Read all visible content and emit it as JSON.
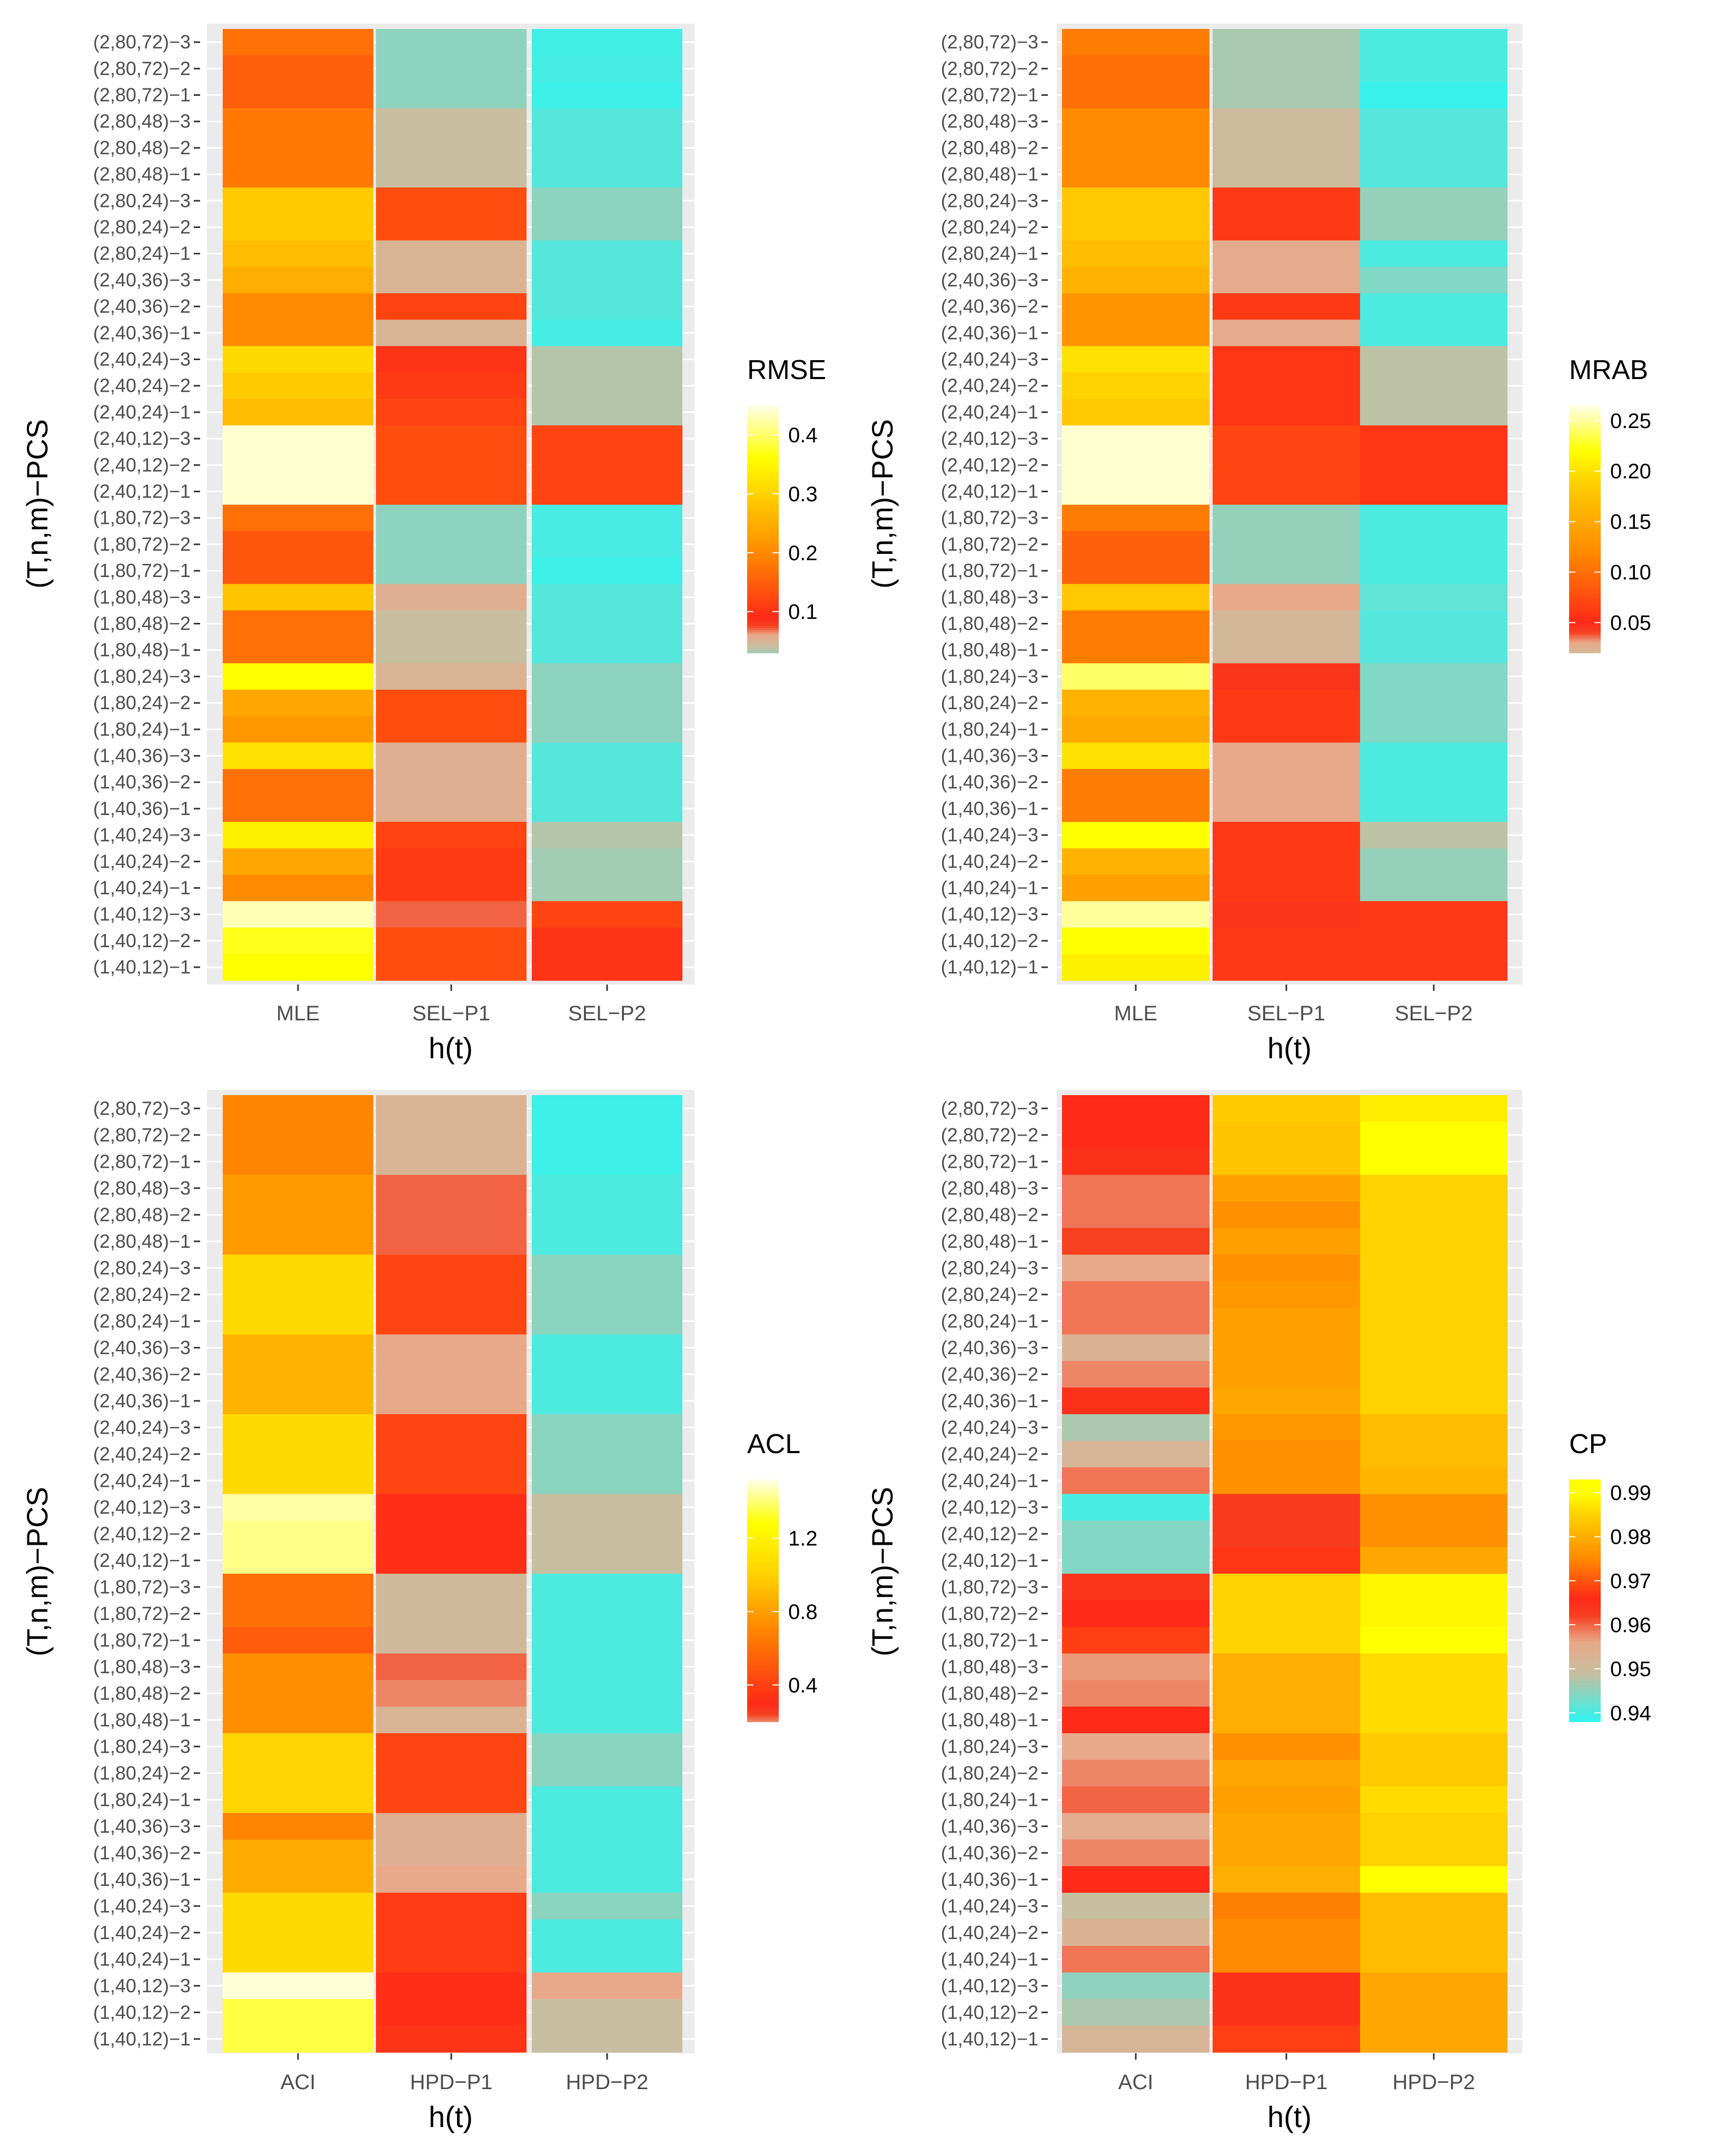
{
  "chart_data": [
    {
      "type": "heatmap",
      "id": "rmse",
      "title": "",
      "xlabel": "h(t)",
      "ylabel": "(T,n,m)−PCS",
      "legend_title": "RMSE",
      "columns": [
        "MLE",
        "SEL−P1",
        "SEL−P2"
      ],
      "rows": [
        "(2,80,72)−3",
        "(2,80,72)−2",
        "(2,80,72)−1",
        "(2,80,48)−3",
        "(2,80,48)−2",
        "(2,80,48)−1",
        "(2,80,24)−3",
        "(2,80,24)−2",
        "(2,80,24)−1",
        "(2,40,36)−3",
        "(2,40,36)−2",
        "(2,40,36)−1",
        "(2,40,24)−3",
        "(2,40,24)−2",
        "(2,40,24)−1",
        "(2,40,12)−3",
        "(2,40,12)−2",
        "(2,40,12)−1",
        "(1,80,72)−3",
        "(1,80,72)−2",
        "(1,80,72)−1",
        "(1,80,48)−3",
        "(1,80,48)−2",
        "(1,80,48)−1",
        "(1,80,24)−3",
        "(1,80,24)−2",
        "(1,80,24)−1",
        "(1,40,36)−3",
        "(1,40,36)−2",
        "(1,40,36)−1",
        "(1,40,24)−3",
        "(1,40,24)−2",
        "(1,40,24)−1",
        "(1,40,12)−3",
        "(1,40,12)−2",
        "(1,40,12)−1"
      ],
      "values": [
        [
          0.17,
          0.025,
          0.005
        ],
        [
          0.15,
          0.025,
          0.006
        ],
        [
          0.15,
          0.025,
          0.004
        ],
        [
          0.18,
          0.04,
          0.01
        ],
        [
          0.18,
          0.04,
          0.01
        ],
        [
          0.18,
          0.04,
          0.01
        ],
        [
          0.29,
          0.13,
          0.025
        ],
        [
          0.29,
          0.13,
          0.025
        ],
        [
          0.27,
          0.05,
          0.01
        ],
        [
          0.25,
          0.05,
          0.01
        ],
        [
          0.2,
          0.12,
          0.01
        ],
        [
          0.2,
          0.05,
          0.006
        ],
        [
          0.31,
          0.1,
          0.035
        ],
        [
          0.29,
          0.11,
          0.035
        ],
        [
          0.27,
          0.12,
          0.035
        ],
        [
          0.44,
          0.13,
          0.12
        ],
        [
          0.44,
          0.13,
          0.12
        ],
        [
          0.44,
          0.13,
          0.12
        ],
        [
          0.17,
          0.025,
          0.007
        ],
        [
          0.14,
          0.025,
          0.007
        ],
        [
          0.14,
          0.025,
          0.004
        ],
        [
          0.28,
          0.055,
          0.01
        ],
        [
          0.17,
          0.04,
          0.01
        ],
        [
          0.17,
          0.04,
          0.01
        ],
        [
          0.36,
          0.05,
          0.025
        ],
        [
          0.24,
          0.13,
          0.025
        ],
        [
          0.22,
          0.13,
          0.025
        ],
        [
          0.32,
          0.055,
          0.01
        ],
        [
          0.17,
          0.055,
          0.01
        ],
        [
          0.17,
          0.055,
          0.01
        ],
        [
          0.34,
          0.12,
          0.035
        ],
        [
          0.24,
          0.11,
          0.03
        ],
        [
          0.2,
          0.11,
          0.03
        ],
        [
          0.43,
          0.07,
          0.12
        ],
        [
          0.37,
          0.13,
          0.1
        ],
        [
          0.36,
          0.13,
          0.1
        ]
      ],
      "color_scale": [
        {
          "v": 0.0,
          "c": "#2ef5f0"
        },
        {
          "v": 0.04,
          "c": "#c8beA0"
        },
        {
          "v": 0.06,
          "c": "#e8a98a"
        },
        {
          "v": 0.075,
          "c": "#f64020"
        },
        {
          "v": 0.09,
          "c": "#ff2a18"
        },
        {
          "v": 0.2,
          "c": "#ff8a00"
        },
        {
          "v": 0.3,
          "c": "#ffd200"
        },
        {
          "v": 0.36,
          "c": "#ffff00"
        },
        {
          "v": 0.45,
          "c": "#ffffea"
        }
      ],
      "legend_range": [
        0.03,
        0.45
      ],
      "legend_breaks": [
        0.1,
        0.2,
        0.3,
        0.4
      ],
      "legend_labels": [
        "0.1",
        "0.2",
        "0.3",
        "0.4"
      ]
    },
    {
      "type": "heatmap",
      "id": "mrab",
      "title": "",
      "xlabel": "h(t)",
      "ylabel": "(T,n,m)−PCS",
      "legend_title": "MRAB",
      "columns": [
        "MLE",
        "SEL−P1",
        "SEL−P2"
      ],
      "rows": [
        "(2,80,72)−3",
        "(2,80,72)−2",
        "(2,80,72)−1",
        "(2,80,48)−3",
        "(2,80,48)−2",
        "(2,80,48)−1",
        "(2,80,24)−3",
        "(2,80,24)−2",
        "(2,80,24)−1",
        "(2,40,36)−3",
        "(2,40,36)−2",
        "(2,40,36)−1",
        "(2,40,24)−3",
        "(2,40,24)−2",
        "(2,40,24)−1",
        "(2,40,12)−3",
        "(2,40,12)−2",
        "(2,40,12)−1",
        "(1,80,72)−3",
        "(1,80,72)−2",
        "(1,80,72)−1",
        "(1,80,48)−3",
        "(1,80,48)−2",
        "(1,80,48)−1",
        "(1,80,24)−3",
        "(1,80,24)−2",
        "(1,80,24)−1",
        "(1,40,36)−3",
        "(1,40,36)−2",
        "(1,40,36)−1",
        "(1,40,24)−3",
        "(1,40,24)−2",
        "(1,40,24)−1",
        "(1,40,12)−3",
        "(1,40,12)−2",
        "(1,40,12)−1"
      ],
      "values": [
        [
          0.11,
          0.012,
          0.003
        ],
        [
          0.1,
          0.012,
          0.003
        ],
        [
          0.1,
          0.012,
          0.001
        ],
        [
          0.12,
          0.018,
          0.004
        ],
        [
          0.12,
          0.018,
          0.004
        ],
        [
          0.12,
          0.018,
          0.004
        ],
        [
          0.18,
          0.06,
          0.01
        ],
        [
          0.18,
          0.06,
          0.01
        ],
        [
          0.17,
          0.028,
          0.003
        ],
        [
          0.16,
          0.028,
          0.008
        ],
        [
          0.13,
          0.06,
          0.003
        ],
        [
          0.13,
          0.028,
          0.003
        ],
        [
          0.2,
          0.058,
          0.014
        ],
        [
          0.19,
          0.058,
          0.014
        ],
        [
          0.18,
          0.058,
          0.014
        ],
        [
          0.26,
          0.07,
          0.058
        ],
        [
          0.26,
          0.07,
          0.058
        ],
        [
          0.26,
          0.07,
          0.058
        ],
        [
          0.11,
          0.01,
          0.003
        ],
        [
          0.09,
          0.01,
          0.003
        ],
        [
          0.09,
          0.01,
          0.003
        ],
        [
          0.18,
          0.03,
          0.005
        ],
        [
          0.11,
          0.02,
          0.004
        ],
        [
          0.11,
          0.02,
          0.004
        ],
        [
          0.24,
          0.045,
          0.008
        ],
        [
          0.16,
          0.06,
          0.008
        ],
        [
          0.15,
          0.06,
          0.008
        ],
        [
          0.2,
          0.03,
          0.003
        ],
        [
          0.11,
          0.03,
          0.003
        ],
        [
          0.11,
          0.03,
          0.003
        ],
        [
          0.22,
          0.06,
          0.014
        ],
        [
          0.16,
          0.06,
          0.01
        ],
        [
          0.14,
          0.06,
          0.01
        ],
        [
          0.25,
          0.045,
          0.06
        ],
        [
          0.22,
          0.06,
          0.06
        ],
        [
          0.21,
          0.06,
          0.06
        ]
      ],
      "color_scale": [
        {
          "v": 0.0,
          "c": "#2ef5f0"
        },
        {
          "v": 0.015,
          "c": "#c8beA0"
        },
        {
          "v": 0.03,
          "c": "#e8a98a"
        },
        {
          "v": 0.04,
          "c": "#f64020"
        },
        {
          "v": 0.05,
          "c": "#ff2a18"
        },
        {
          "v": 0.12,
          "c": "#ff8a00"
        },
        {
          "v": 0.19,
          "c": "#ffd200"
        },
        {
          "v": 0.22,
          "c": "#ffff00"
        },
        {
          "v": 0.265,
          "c": "#ffffea"
        }
      ],
      "legend_range": [
        0.02,
        0.265
      ],
      "legend_breaks": [
        0.05,
        0.1,
        0.15,
        0.2,
        0.25
      ],
      "legend_labels": [
        "0.05",
        "0.10",
        "0.15",
        "0.20",
        "0.25"
      ]
    },
    {
      "type": "heatmap",
      "id": "acl",
      "title": "",
      "xlabel": "h(t)",
      "ylabel": "(T,n,m)−PCS",
      "legend_title": "ACL",
      "columns": [
        "ACI",
        "HPD−P1",
        "HPD−P2"
      ],
      "rows": [
        "(2,80,72)−3",
        "(2,80,72)−2",
        "(2,80,72)−1",
        "(2,80,48)−3",
        "(2,80,48)−2",
        "(2,80,48)−1",
        "(2,80,24)−3",
        "(2,80,24)−2",
        "(2,80,24)−1",
        "(2,40,36)−3",
        "(2,40,36)−2",
        "(2,40,36)−1",
        "(2,40,24)−3",
        "(2,40,24)−2",
        "(2,40,24)−1",
        "(2,40,12)−3",
        "(2,40,12)−2",
        "(2,40,12)−1",
        "(1,80,72)−3",
        "(1,80,72)−2",
        "(1,80,72)−1",
        "(1,80,48)−3",
        "(1,80,48)−2",
        "(1,80,48)−1",
        "(1,80,24)−3",
        "(1,80,24)−2",
        "(1,80,24)−1",
        "(1,40,36)−3",
        "(1,40,36)−2",
        "(1,40,36)−1",
        "(1,40,24)−3",
        "(1,40,24)−2",
        "(1,40,24)−1",
        "(1,40,12)−3",
        "(1,40,12)−2",
        "(1,40,12)−1"
      ],
      "values": [
        [
          0.7,
          0.14,
          0.01
        ],
        [
          0.7,
          0.14,
          0.01
        ],
        [
          0.7,
          0.14,
          0.01
        ],
        [
          0.78,
          0.22,
          0.02
        ],
        [
          0.78,
          0.22,
          0.02
        ],
        [
          0.78,
          0.22,
          0.02
        ],
        [
          1.05,
          0.42,
          0.06
        ],
        [
          1.05,
          0.42,
          0.06
        ],
        [
          1.05,
          0.42,
          0.06
        ],
        [
          0.88,
          0.18,
          0.02
        ],
        [
          0.88,
          0.18,
          0.02
        ],
        [
          0.88,
          0.18,
          0.02
        ],
        [
          1.05,
          0.42,
          0.06
        ],
        [
          1.05,
          0.42,
          0.06
        ],
        [
          1.05,
          0.42,
          0.06
        ],
        [
          1.45,
          0.32,
          0.1
        ],
        [
          1.42,
          0.32,
          0.1
        ],
        [
          1.42,
          0.32,
          0.1
        ],
        [
          0.6,
          0.12,
          0.02
        ],
        [
          0.6,
          0.12,
          0.02
        ],
        [
          0.52,
          0.12,
          0.02
        ],
        [
          0.74,
          0.22,
          0.02
        ],
        [
          0.74,
          0.2,
          0.02
        ],
        [
          0.74,
          0.14,
          0.02
        ],
        [
          1.02,
          0.42,
          0.06
        ],
        [
          1.02,
          0.42,
          0.06
        ],
        [
          1.02,
          0.42,
          0.02
        ],
        [
          0.7,
          0.16,
          0.02
        ],
        [
          0.85,
          0.16,
          0.02
        ],
        [
          0.85,
          0.18,
          0.02
        ],
        [
          1.05,
          0.38,
          0.06
        ],
        [
          1.05,
          0.38,
          0.02
        ],
        [
          1.05,
          0.38,
          0.02
        ],
        [
          1.5,
          0.32,
          0.18
        ],
        [
          1.35,
          0.32,
          0.1
        ],
        [
          1.35,
          0.34,
          0.1
        ]
      ],
      "color_scale": [
        {
          "v": 0.0,
          "c": "#2ef5f0"
        },
        {
          "v": 0.1,
          "c": "#c8beA0"
        },
        {
          "v": 0.18,
          "c": "#e8a98a"
        },
        {
          "v": 0.24,
          "c": "#f64020"
        },
        {
          "v": 0.3,
          "c": "#ff2a18"
        },
        {
          "v": 0.72,
          "c": "#ff8a00"
        },
        {
          "v": 1.0,
          "c": "#ffd200"
        },
        {
          "v": 1.28,
          "c": "#ffff00"
        },
        {
          "v": 1.52,
          "c": "#ffffea"
        }
      ],
      "legend_range": [
        0.2,
        1.52
      ],
      "legend_breaks": [
        0.4,
        0.8,
        1.2
      ],
      "legend_labels": [
        "0.4",
        "0.8",
        "1.2"
      ]
    },
    {
      "type": "heatmap",
      "id": "cp",
      "title": "",
      "xlabel": "h(t)",
      "ylabel": "(T,n,m)−PCS",
      "legend_title": "CP",
      "columns": [
        "ACI",
        "HPD−P1",
        "HPD−P2"
      ],
      "rows": [
        "(2,80,72)−3",
        "(2,80,72)−2",
        "(2,80,72)−1",
        "(2,80,48)−3",
        "(2,80,48)−2",
        "(2,80,48)−1",
        "(2,80,24)−3",
        "(2,80,24)−2",
        "(2,80,24)−1",
        "(2,40,36)−3",
        "(2,40,36)−2",
        "(2,40,36)−1",
        "(2,40,24)−3",
        "(2,40,24)−2",
        "(2,40,24)−1",
        "(2,40,12)−3",
        "(2,40,12)−2",
        "(2,40,12)−1",
        "(1,80,72)−3",
        "(1,80,72)−2",
        "(1,80,72)−1",
        "(1,80,48)−3",
        "(1,80,48)−2",
        "(1,80,48)−1",
        "(1,80,24)−3",
        "(1,80,24)−2",
        "(1,80,24)−1",
        "(1,40,36)−3",
        "(1,40,36)−2",
        "(1,40,36)−1",
        "(1,40,24)−3",
        "(1,40,24)−2",
        "(1,40,24)−1",
        "(1,40,12)−3",
        "(1,40,12)−2",
        "(1,40,12)−1"
      ],
      "values": [
        [
          0.966,
          0.984,
          0.988
        ],
        [
          0.966,
          0.983,
          0.991
        ],
        [
          0.965,
          0.983,
          0.991
        ],
        [
          0.959,
          0.978,
          0.985
        ],
        [
          0.959,
          0.976,
          0.985
        ],
        [
          0.962,
          0.978,
          0.985
        ],
        [
          0.956,
          0.976,
          0.985
        ],
        [
          0.959,
          0.977,
          0.985
        ],
        [
          0.959,
          0.978,
          0.985
        ],
        [
          0.953,
          0.978,
          0.985
        ],
        [
          0.958,
          0.978,
          0.985
        ],
        [
          0.965,
          0.979,
          0.985
        ],
        [
          0.947,
          0.977,
          0.982
        ],
        [
          0.952,
          0.976,
          0.982
        ],
        [
          0.959,
          0.976,
          0.981
        ],
        [
          0.94,
          0.963,
          0.976
        ],
        [
          0.944,
          0.963,
          0.976
        ],
        [
          0.944,
          0.967,
          0.979
        ],
        [
          0.964,
          0.985,
          0.989
        ],
        [
          0.966,
          0.985,
          0.989
        ],
        [
          0.968,
          0.985,
          0.99
        ],
        [
          0.957,
          0.98,
          0.986
        ],
        [
          0.958,
          0.98,
          0.986
        ],
        [
          0.966,
          0.98,
          0.986
        ],
        [
          0.956,
          0.976,
          0.984
        ],
        [
          0.958,
          0.979,
          0.984
        ],
        [
          0.96,
          0.978,
          0.986
        ],
        [
          0.955,
          0.979,
          0.985
        ],
        [
          0.958,
          0.979,
          0.985
        ],
        [
          0.966,
          0.98,
          0.991
        ],
        [
          0.949,
          0.974,
          0.982
        ],
        [
          0.953,
          0.975,
          0.982
        ],
        [
          0.959,
          0.975,
          0.982
        ],
        [
          0.945,
          0.965,
          0.979
        ],
        [
          0.947,
          0.965,
          0.979
        ],
        [
          0.952,
          0.968,
          0.979
        ]
      ],
      "color_scale": [
        {
          "v": 0.938,
          "c": "#2ef5f0"
        },
        {
          "v": 0.949,
          "c": "#c8beA0"
        },
        {
          "v": 0.956,
          "c": "#e8a98a"
        },
        {
          "v": 0.962,
          "c": "#f64020"
        },
        {
          "v": 0.966,
          "c": "#ff2a18"
        },
        {
          "v": 0.975,
          "c": "#ff8a00"
        },
        {
          "v": 0.985,
          "c": "#ffd200"
        },
        {
          "v": 0.99,
          "c": "#ffff00"
        },
        {
          "v": 0.993,
          "c": "#ffff00"
        }
      ],
      "legend_range": [
        0.938,
        0.993
      ],
      "legend_breaks": [
        0.94,
        0.95,
        0.96,
        0.97,
        0.98,
        0.99
      ],
      "legend_labels": [
        "0.94",
        "0.95",
        "0.96",
        "0.97",
        "0.98",
        "0.99"
      ]
    }
  ]
}
